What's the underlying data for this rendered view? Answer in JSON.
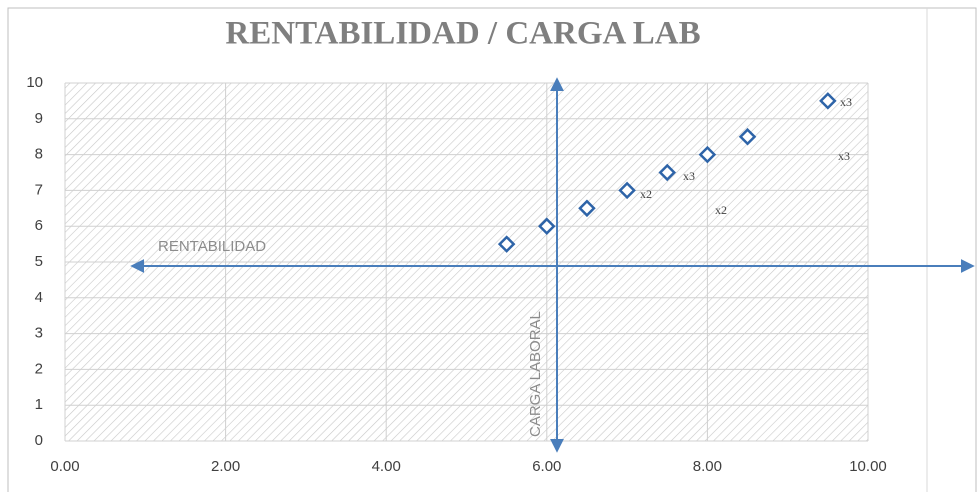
{
  "chart_data": {
    "type": "scatter",
    "title": "RENTABILIDAD / CARGA LAB",
    "x_label": "RENTABILIDAD",
    "y_label": "CARGA LABORAL",
    "series": [
      {
        "color": "#2e64a8",
        "x": [
          5.5,
          6,
          6.5,
          7,
          7.5,
          8,
          8.5,
          9.5
        ],
        "values": [
          5.5,
          6,
          6.5,
          7,
          7.5,
          8,
          8.5,
          9.5
        ]
      }
    ],
    "annotations": [
      "x3",
      "x3",
      "x2",
      "x3",
      "x2"
    ],
    "xlim": [
      0,
      10
    ],
    "xticks": [
      {
        "value": 0,
        "label": "0.00"
      },
      {
        "value": 2,
        "label": "2.00"
      },
      {
        "value": 4,
        "label": "4.00"
      },
      {
        "value": 6,
        "label": "6.00"
      },
      {
        "value": 8,
        "label": "8.00"
      },
      {
        "value": 10,
        "label": "10.00"
      }
    ],
    "ylim": [
      0,
      10
    ],
    "yticks": [
      0,
      1,
      2,
      3,
      4,
      5,
      6,
      7,
      8,
      9,
      10
    ],
    "grid": true
  }
}
